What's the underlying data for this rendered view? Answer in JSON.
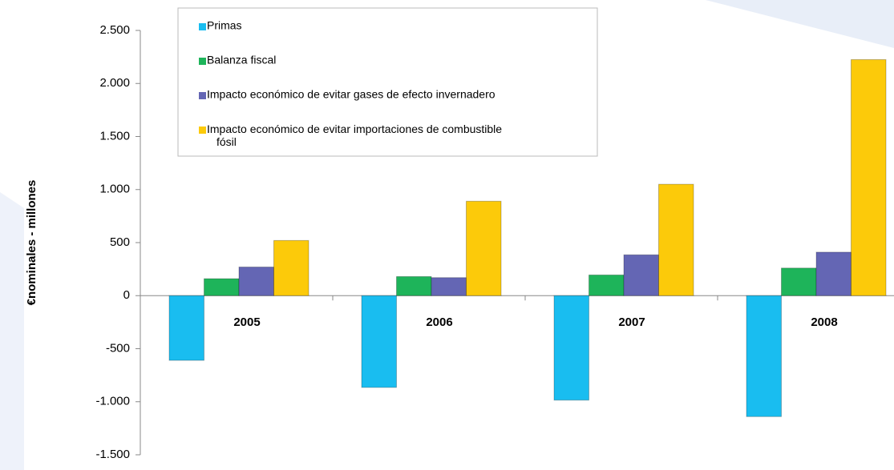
{
  "chart_data": {
    "type": "bar",
    "y_label": "€nominales - millones",
    "categories": [
      "2005",
      "2006",
      "2007",
      "2008"
    ],
    "series": [
      {
        "name": "Primas",
        "color": "#19bdf0",
        "values": [
          -610,
          -865,
          -985,
          -1140
        ]
      },
      {
        "name": "Balanza fiscal",
        "color": "#1eb45a",
        "values": [
          160,
          180,
          195,
          260
        ]
      },
      {
        "name": "Impacto económico de evitar gases de efecto invernadero",
        "color": "#6466b4",
        "values": [
          270,
          170,
          385,
          410
        ]
      },
      {
        "name": "Impacto económico de evitar importaciones de combustible fósil",
        "color": "#fcca0a",
        "values": [
          520,
          890,
          1050,
          2225
        ]
      }
    ],
    "ylim": [
      -1500,
      2500
    ],
    "yticks": [
      {
        "value": -1500,
        "label": "-1.500"
      },
      {
        "value": -1000,
        "label": "-1.000"
      },
      -500,
      0,
      500,
      {
        "value": 1000,
        "label": "1.000"
      },
      {
        "value": 1500,
        "label": "1.500"
      },
      {
        "value": 2000,
        "label": "2.000"
      },
      {
        "value": 2500,
        "label": "2.500"
      }
    ],
    "grid": false,
    "legend": "top-left"
  }
}
